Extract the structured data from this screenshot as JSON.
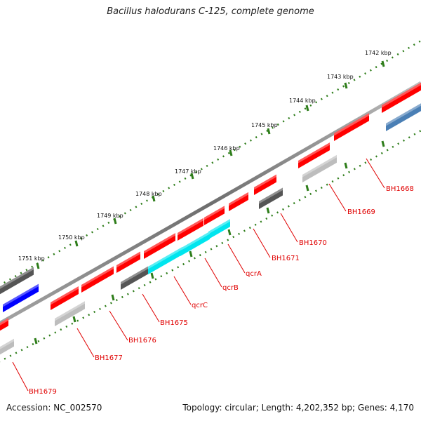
{
  "title": "Bacillus halodurans C-125, complete genome",
  "accession": "Accession: NC_002570",
  "topology": "Topology: circular; Length: 4,202,352 bp; Genes: 4,170",
  "colors": {
    "backbone": "#7f7f7f",
    "tick": "#2e7d1a",
    "label": "#e00000",
    "red_gene": "#ff0000",
    "cyan_gene": "#00e5ee",
    "dark_grey_gene": "#555555",
    "light_grey_gene": "#bdbdbd",
    "blue_gene": "#0000ff",
    "steel_blue_gene": "#4a7fb5"
  },
  "ruler": {
    "ticks": [
      "1742 kbp",
      "1743 kbp",
      "1744 kbp",
      "1745 kbp",
      "1746 kbp",
      "1747 kbp",
      "1748 kbp",
      "1749 kbp",
      "1750 kbp",
      "1751 kbp"
    ]
  },
  "gene_labels": [
    "BH1668",
    "BH1669",
    "BH1670",
    "BH1671",
    "qcrA",
    "qcrB",
    "qcrC",
    "BH1675",
    "BH1676",
    "BH1677",
    "BH1679"
  ]
}
